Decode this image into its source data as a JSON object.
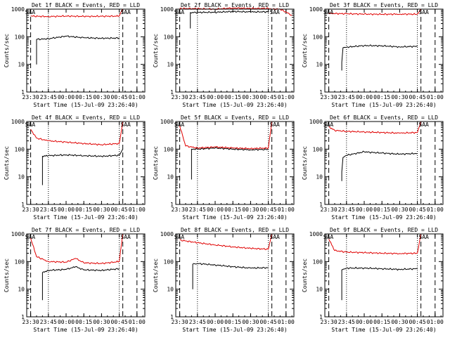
{
  "window": {
    "title": ""
  },
  "colors": {
    "events": "#000000",
    "lld": "#e00000",
    "background": "#ffffff"
  },
  "chart_data": [
    {
      "type": "line",
      "title": "Det 1f BLACK = Events, RED = LLD",
      "xlabel": "Start Time (15-Jul-09 23:26:40)",
      "ylabel": "Counts/sec",
      "xticklabels": [
        "23:30",
        "23:45",
        "00:00",
        "00:15",
        "00:30",
        "00:45",
        "01:00"
      ],
      "yticklabels": [
        "1",
        "10",
        "100",
        "1000"
      ],
      "yscale": "log",
      "ylim": [
        1,
        1000
      ],
      "markers": {
        "dotted": [
          "23:45",
          "00:45"
        ],
        "dashed": [
          "23:30",
          "00:48",
          "01:00"
        ]
      },
      "series": [
        {
          "name": "Events",
          "points": [
            [
              "23:35",
              10
            ],
            [
              "23:35",
              80
            ],
            [
              "23:45",
              85
            ],
            [
              "00:00",
              105
            ],
            [
              "00:15",
              92
            ],
            [
              "00:30",
              88
            ],
            [
              "00:45",
              90
            ]
          ]
        },
        {
          "name": "LLD",
          "points": [
            [
              "23:30",
              560
            ],
            [
              "23:45",
              540
            ],
            [
              "00:00",
              560
            ],
            [
              "00:15",
              545
            ],
            [
              "00:30",
              550
            ],
            [
              "00:45",
              560
            ],
            [
              "00:48",
              1000
            ]
          ]
        }
      ],
      "labels": [
        {
          "text": "SAA"
        },
        {
          "text": "SAA"
        }
      ]
    },
    {
      "type": "line",
      "title": "Det 2f BLACK = Events, RED = LLD",
      "xlabel": "Start Time (15-Jul-09 23:26:40)",
      "ylabel": "Counts/sec",
      "xticklabels": [
        "23:30",
        "23:45",
        "00:00",
        "00:15",
        "00:30",
        "00:45",
        "01:00"
      ],
      "yticklabels": [
        "1",
        "10",
        "100",
        "1000"
      ],
      "yscale": "log",
      "ylim": [
        1,
        1000
      ],
      "markers": {
        "dotted": [
          "23:45",
          "00:45"
        ],
        "dashed": [
          "23:30",
          "00:48",
          "01:00"
        ]
      },
      "series": [
        {
          "name": "Events",
          "points": [
            [
              "23:39",
              200
            ],
            [
              "23:39",
              750
            ],
            [
              "23:45",
              760
            ],
            [
              "00:00",
              770
            ],
            [
              "00:15",
              820
            ],
            [
              "00:30",
              790
            ],
            [
              "00:45",
              800
            ]
          ]
        },
        {
          "name": "LLD",
          "points": [
            [
              "23:30",
              1050
            ],
            [
              "23:45",
              1040
            ],
            [
              "00:00",
              1000
            ],
            [
              "00:15",
              1100
            ],
            [
              "00:30",
              1050
            ],
            [
              "00:45",
              1060
            ],
            [
              "00:48",
              1000
            ],
            [
              "00:55",
              1000
            ],
            [
              "01:05",
              600
            ]
          ]
        }
      ],
      "labels": [
        {
          "text": "SAA"
        },
        {
          "text": "SAA"
        }
      ]
    },
    {
      "type": "line",
      "title": "Det 3f BLACK = Events, RED = LLD",
      "xlabel": "Start Time (15-Jul-09 23:26:40)",
      "ylabel": "Counts/sec",
      "xticklabels": [
        "23:30",
        "23:45",
        "00:00",
        "00:15",
        "00:30",
        "00:45",
        "01:00"
      ],
      "yticklabels": [
        "1",
        "10",
        "100",
        "1000"
      ],
      "yscale": "log",
      "ylim": [
        1,
        1000
      ],
      "markers": {
        "dotted": [
          "23:45",
          "00:45"
        ],
        "dashed": [
          "23:30",
          "00:48",
          "01:00"
        ]
      },
      "series": [
        {
          "name": "Events",
          "points": [
            [
              "23:41",
              6
            ],
            [
              "23:41",
              12
            ],
            [
              "23:42",
              40
            ],
            [
              "23:45",
              42
            ],
            [
              "00:00",
              48
            ],
            [
              "00:15",
              47
            ],
            [
              "00:30",
              43
            ],
            [
              "00:45",
              45
            ]
          ]
        },
        {
          "name": "LLD",
          "points": [
            [
              "23:30",
              700
            ],
            [
              "23:45",
              680
            ],
            [
              "00:00",
              660
            ],
            [
              "00:15",
              650
            ],
            [
              "00:30",
              660
            ],
            [
              "00:45",
              655
            ],
            [
              "00:48",
              1000
            ]
          ]
        }
      ],
      "labels": [
        {
          "text": "SAA"
        },
        {
          "text": "SAA"
        }
      ]
    },
    {
      "type": "line",
      "title": "Det 4f BLACK = Events, RED = LLD",
      "xlabel": "Start Time (15-Jul-09 23:26:40)",
      "ylabel": "Counts/sec",
      "xticklabels": [
        "23:30",
        "23:45",
        "00:00",
        "00:15",
        "00:30",
        "00:45",
        "01:00"
      ],
      "yticklabels": [
        "1",
        "10",
        "100",
        "1000"
      ],
      "yscale": "log",
      "ylim": [
        1,
        1000
      ],
      "markers": {
        "dotted": [
          "23:45",
          "00:45"
        ],
        "dashed": [
          "23:30",
          "00:48",
          "01:00"
        ]
      },
      "series": [
        {
          "name": "Events",
          "points": [
            [
              "23:40",
              5
            ],
            [
              "23:40",
              55
            ],
            [
              "23:45",
              58
            ],
            [
              "00:00",
              62
            ],
            [
              "00:15",
              58
            ],
            [
              "00:30",
              55
            ],
            [
              "00:45",
              60
            ],
            [
              "00:48",
              100
            ]
          ]
        },
        {
          "name": "LLD",
          "points": [
            [
              "23:30",
              520
            ],
            [
              "23:35",
              250
            ],
            [
              "23:45",
              200
            ],
            [
              "00:00",
              180
            ],
            [
              "00:15",
              160
            ],
            [
              "00:30",
              145
            ],
            [
              "00:45",
              160
            ],
            [
              "00:48",
              1000
            ]
          ]
        }
      ],
      "labels": [
        {
          "text": "SAA"
        },
        {
          "text": "SAA"
        }
      ]
    },
    {
      "type": "line",
      "title": "Det 5f BLACK = Events, RED = LLD",
      "xlabel": "Start Time (15-Jul-09 23:26:40)",
      "ylabel": "Counts/sec",
      "xticklabels": [
        "23:30",
        "23:45",
        "00:00",
        "00:15",
        "00:30",
        "00:45",
        "01:00"
      ],
      "yticklabels": [
        "1",
        "10",
        "100",
        "1000"
      ],
      "yscale": "log",
      "ylim": [
        1,
        1000
      ],
      "markers": {
        "dotted": [
          "23:45",
          "00:45"
        ],
        "dashed": [
          "23:30",
          "00:48",
          "01:00"
        ]
      },
      "series": [
        {
          "name": "Events",
          "points": [
            [
              "23:40",
              8
            ],
            [
              "23:40",
              100
            ],
            [
              "23:45",
              100
            ],
            [
              "00:00",
              110
            ],
            [
              "00:15",
              100
            ],
            [
              "00:30",
              95
            ],
            [
              "00:45",
              98
            ]
          ]
        },
        {
          "name": "LLD",
          "points": [
            [
              "23:30",
              700
            ],
            [
              "23:35",
              130
            ],
            [
              "23:45",
              110
            ],
            [
              "00:00",
              120
            ],
            [
              "00:15",
              110
            ],
            [
              "00:30",
              105
            ],
            [
              "00:45",
              110
            ],
            [
              "00:48",
              1000
            ]
          ]
        }
      ],
      "labels": [
        {
          "text": "SAA"
        },
        {
          "text": "SAA"
        }
      ]
    },
    {
      "type": "line",
      "title": "Det 6f BLACK = Events, RED = LLD",
      "xlabel": "Start Time (15-Jul-09 23:26:40)",
      "ylabel": "Counts/sec",
      "xticklabels": [
        "23:30",
        "23:45",
        "00:00",
        "00:15",
        "00:30",
        "00:45",
        "01:00"
      ],
      "yticklabels": [
        "1",
        "10",
        "100",
        "1000"
      ],
      "yscale": "log",
      "ylim": [
        1,
        1000
      ],
      "markers": {
        "dotted": [
          "23:45",
          "00:45"
        ],
        "dashed": [
          "23:30",
          "00:48",
          "01:00"
        ]
      },
      "series": [
        {
          "name": "Events",
          "points": [
            [
              "23:41",
              7
            ],
            [
              "23:41",
              15
            ],
            [
              "23:42",
              50
            ],
            [
              "23:45",
              60
            ],
            [
              "00:00",
              80
            ],
            [
              "00:15",
              72
            ],
            [
              "00:30",
              66
            ],
            [
              "00:45",
              70
            ]
          ]
        },
        {
          "name": "LLD",
          "points": [
            [
              "23:30",
              650
            ],
            [
              "23:35",
              480
            ],
            [
              "23:45",
              440
            ],
            [
              "00:00",
              420
            ],
            [
              "00:15",
              400
            ],
            [
              "00:30",
              380
            ],
            [
              "00:45",
              400
            ],
            [
              "00:48",
              1000
            ]
          ]
        }
      ],
      "labels": [
        {
          "text": "SAA"
        },
        {
          "text": "SAA"
        }
      ]
    },
    {
      "type": "line",
      "title": "Det 7f BLACK = Events, RED = LLD",
      "xlabel": "Start Time (15-Jul-09 23:26:40)",
      "ylabel": "Counts/sec",
      "xticklabels": [
        "23:30",
        "23:45",
        "00:00",
        "00:15",
        "00:30",
        "00:45",
        "01:00"
      ],
      "yticklabels": [
        "1",
        "10",
        "100",
        "1000"
      ],
      "yscale": "log",
      "ylim": [
        1,
        1000
      ],
      "markers": {
        "dotted": [
          "23:45",
          "00:45"
        ],
        "dashed": [
          "23:30",
          "00:48",
          "01:00"
        ]
      },
      "series": [
        {
          "name": "Events",
          "points": [
            [
              "23:40",
              4
            ],
            [
              "23:40",
              40
            ],
            [
              "23:45",
              48
            ],
            [
              "00:00",
              52
            ],
            [
              "00:08",
              65
            ],
            [
              "00:15",
              50
            ],
            [
              "00:30",
              48
            ],
            [
              "00:45",
              55
            ]
          ]
        },
        {
          "name": "LLD",
          "points": [
            [
              "23:30",
              700
            ],
            [
              "23:35",
              150
            ],
            [
              "23:45",
              100
            ],
            [
              "00:00",
              95
            ],
            [
              "00:08",
              130
            ],
            [
              "00:15",
              90
            ],
            [
              "00:30",
              85
            ],
            [
              "00:45",
              100
            ],
            [
              "00:48",
              1000
            ]
          ]
        }
      ],
      "labels": [
        {
          "text": "SAA"
        },
        {
          "text": "SAA"
        }
      ]
    },
    {
      "type": "line",
      "title": "Det 8f BLACK = Events, RED = LLD",
      "xlabel": "Start Time (15-Jul-09 23:26:40)",
      "ylabel": "Counts/sec",
      "xticklabels": [
        "23:30",
        "23:45",
        "00:00",
        "00:15",
        "00:30",
        "00:45",
        "01:00"
      ],
      "yticklabels": [
        "1",
        "10",
        "100",
        "1000"
      ],
      "yscale": "log",
      "ylim": [
        1,
        1000
      ],
      "markers": {
        "dotted": [
          "23:45",
          "00:45"
        ],
        "dashed": [
          "23:30",
          "00:48",
          "01:00"
        ]
      },
      "series": [
        {
          "name": "Events",
          "points": [
            [
              "23:41",
              10
            ],
            [
              "23:41",
              80
            ],
            [
              "23:45",
              85
            ],
            [
              "00:00",
              75
            ],
            [
              "00:15",
              65
            ],
            [
              "00:30",
              58
            ],
            [
              "00:45",
              60
            ]
          ]
        },
        {
          "name": "LLD",
          "points": [
            [
              "23:30",
              600
            ],
            [
              "23:45",
              480
            ],
            [
              "00:00",
              400
            ],
            [
              "00:15",
              340
            ],
            [
              "00:30",
              300
            ],
            [
              "00:45",
              280
            ],
            [
              "00:48",
              1000
            ]
          ]
        }
      ],
      "labels": [
        {
          "text": "SAA"
        },
        {
          "text": "SAA"
        }
      ]
    },
    {
      "type": "line",
      "title": "Det 9f BLACK = Events, RED = LLD",
      "xlabel": "Start Time (15-Jul-09 23:26:40)",
      "ylabel": "Counts/sec",
      "xticklabels": [
        "23:30",
        "23:45",
        "00:00",
        "00:15",
        "00:30",
        "00:45",
        "01:00"
      ],
      "yticklabels": [
        "1",
        "10",
        "100",
        "1000"
      ],
      "yscale": "log",
      "ylim": [
        1,
        1000
      ],
      "markers": {
        "dotted": [
          "23:45",
          "00:45"
        ],
        "dashed": [
          "23:30",
          "00:48",
          "01:00"
        ]
      },
      "series": [
        {
          "name": "Events",
          "points": [
            [
              "23:41",
              4
            ],
            [
              "23:41",
              50
            ],
            [
              "23:45",
              58
            ],
            [
              "00:00",
              58
            ],
            [
              "00:15",
              55
            ],
            [
              "00:30",
              52
            ],
            [
              "00:45",
              55
            ]
          ]
        },
        {
          "name": "LLD",
          "points": [
            [
              "23:30",
              650
            ],
            [
              "23:35",
              250
            ],
            [
              "23:45",
              220
            ],
            [
              "00:00",
              210
            ],
            [
              "00:15",
              200
            ],
            [
              "00:30",
              195
            ],
            [
              "00:45",
              200
            ],
            [
              "00:48",
              1000
            ]
          ]
        }
      ],
      "labels": [
        {
          "text": "SAA"
        },
        {
          "text": "SAA"
        }
      ]
    }
  ]
}
